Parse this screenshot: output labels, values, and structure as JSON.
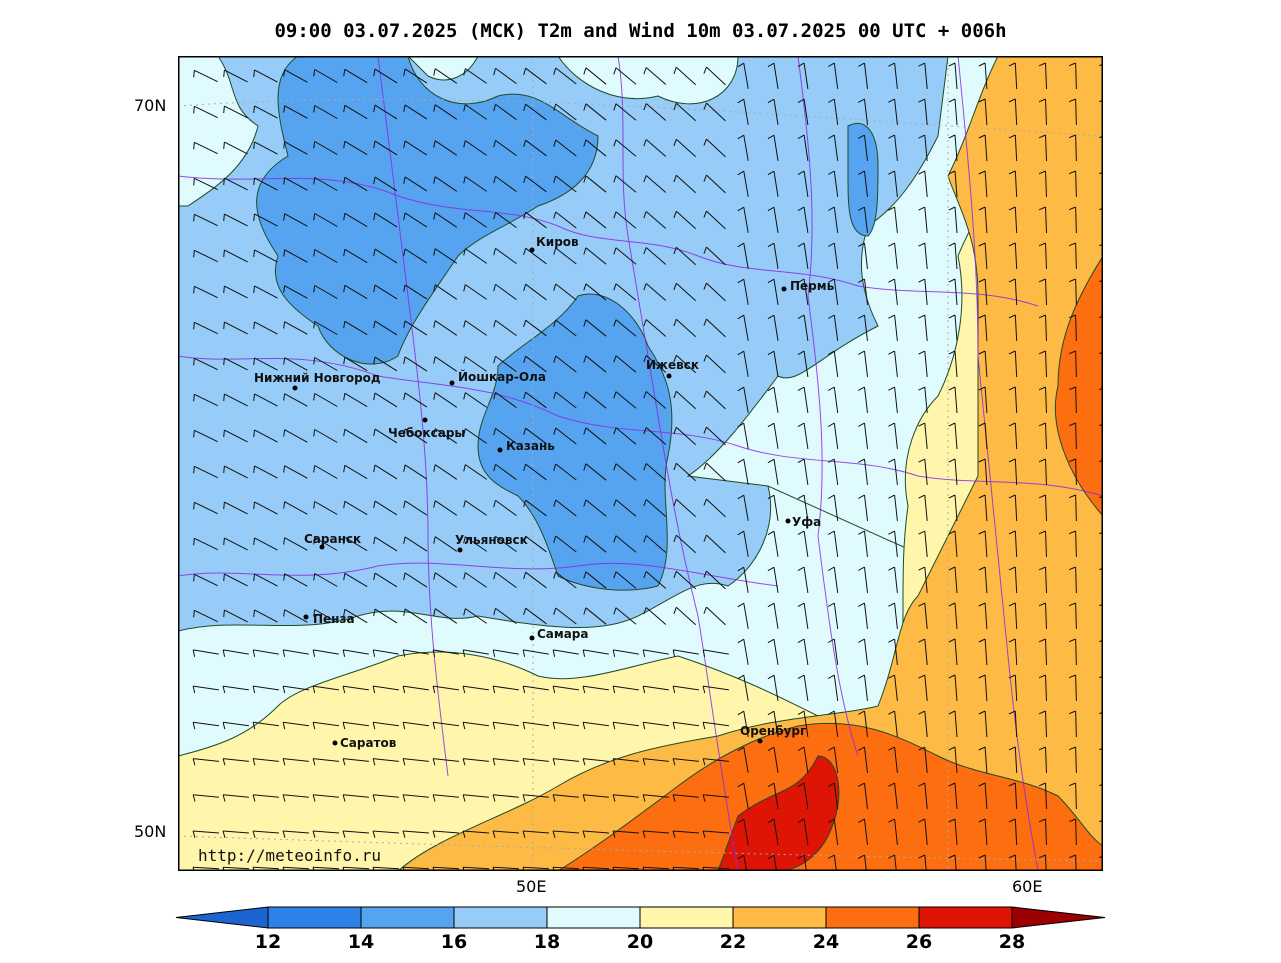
{
  "title": "09:00 03.07.2025 (МСК) T2m and Wind 10m 03.07.2025 00 UTC + 006h",
  "watermark": "http://meteoinfo.ru",
  "latitude_labels": [
    "70N",
    "50N"
  ],
  "longitude_labels": [
    "50E",
    "60E"
  ],
  "cities": [
    {
      "name": "Киров",
      "id": "kirov"
    },
    {
      "name": "Пермь",
      "id": "perm"
    },
    {
      "name": "Нижний Новгород",
      "id": "nizhny"
    },
    {
      "name": "Йошкар-Ола",
      "id": "yoshkar"
    },
    {
      "name": "Ижевск",
      "id": "izhevsk"
    },
    {
      "name": "Чебоксары",
      "id": "cheboksary"
    },
    {
      "name": "Казань",
      "id": "kazan"
    },
    {
      "name": "Уфа",
      "id": "ufa"
    },
    {
      "name": "Саранск",
      "id": "saransk"
    },
    {
      "name": "Ульяновск",
      "id": "ulyanovsk"
    },
    {
      "name": "Пенза",
      "id": "penza"
    },
    {
      "name": "Самара",
      "id": "samara"
    },
    {
      "name": "Оренбург",
      "id": "orenburg"
    },
    {
      "name": "Саратов",
      "id": "saratov"
    }
  ],
  "colorbar": {
    "ticks": [
      "12",
      "14",
      "16",
      "18",
      "20",
      "22",
      "24",
      "26",
      "28"
    ],
    "colors": [
      "#1d64d0",
      "#2d82e8",
      "#56a4f0",
      "#96ccf7",
      "#e0fbfd",
      "#fff6ac",
      "#fdbb45",
      "#fd6e10",
      "#de1405",
      "#9c0000"
    ]
  }
}
